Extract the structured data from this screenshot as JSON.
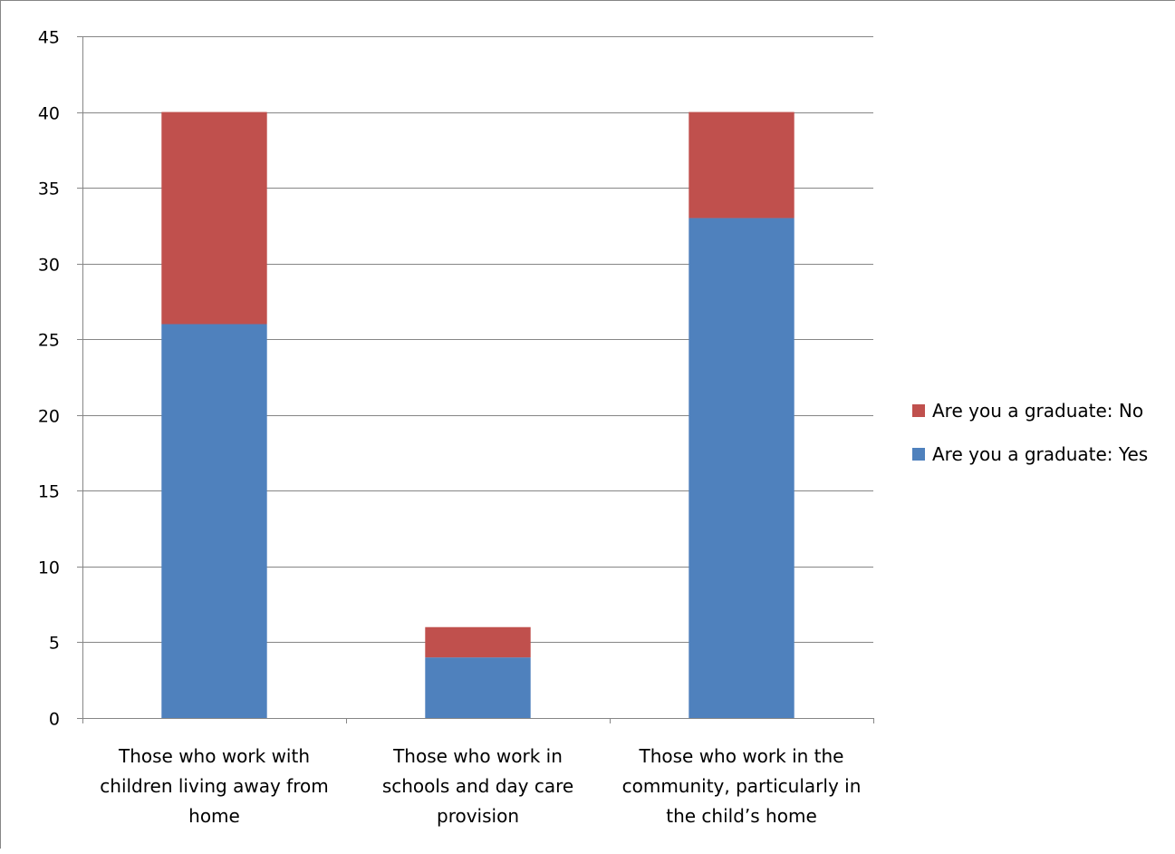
{
  "chart_data": {
    "type": "bar",
    "stacked": true,
    "categories": [
      [
        "Those who work with",
        "children living away from",
        "home"
      ],
      [
        "Those who work in",
        "schools and day care",
        "provision"
      ],
      [
        "Those who work in the",
        "community, particularly in",
        "the child’s home"
      ]
    ],
    "series": [
      {
        "name": "Are you a graduate: Yes",
        "values": [
          26,
          4,
          33
        ],
        "color": "#4F81BD"
      },
      {
        "name": "Are you a graduate: No",
        "values": [
          14,
          2,
          7
        ],
        "color": "#C0504D"
      }
    ],
    "legend_order": [
      1,
      0
    ],
    "title": "",
    "xlabel": "",
    "ylabel": "",
    "ylim": [
      0,
      45
    ],
    "yticks": [
      0,
      5,
      10,
      15,
      20,
      25,
      30,
      35,
      40,
      45
    ],
    "grid": true,
    "legend_position": "right"
  }
}
